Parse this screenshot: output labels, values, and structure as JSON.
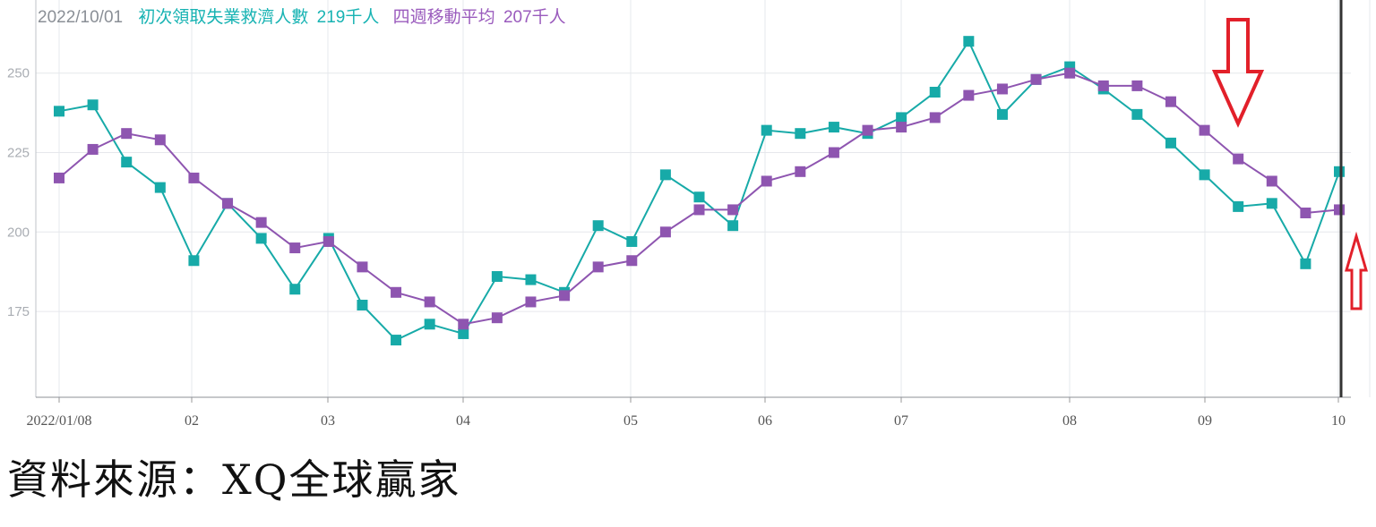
{
  "legend": {
    "date": "2022/10/01",
    "series1_label": "初次領取失業救濟人數",
    "series1_value": "219千人",
    "series2_label": "四週移動平均",
    "series2_value": "207千人"
  },
  "source_text": "資料來源：XQ全球贏家",
  "colors": {
    "series1": "#17aaa8",
    "series2": "#8e55b0",
    "arrow": "#e2202a",
    "cursor": "#333333"
  },
  "chart_data": {
    "type": "line",
    "title": "",
    "xlabel": "",
    "ylabel": "",
    "ylim": [
      148,
      273
    ],
    "yticks": [
      175,
      200,
      225,
      250
    ],
    "xticks": [
      "2022/01/08",
      "02",
      "03",
      "04",
      "05",
      "06",
      "07",
      "08",
      "09",
      "10"
    ],
    "x": [
      "2022/01/08",
      "2022/01/15",
      "2022/01/22",
      "2022/01/29",
      "2022/02/05",
      "2022/02/12",
      "2022/02/19",
      "2022/02/26",
      "2022/03/05",
      "2022/03/12",
      "2022/03/19",
      "2022/03/26",
      "2022/04/02",
      "2022/04/09",
      "2022/04/16",
      "2022/04/23",
      "2022/04/30",
      "2022/05/07",
      "2022/05/14",
      "2022/05/21",
      "2022/05/28",
      "2022/06/04",
      "2022/06/11",
      "2022/06/18",
      "2022/06/25",
      "2022/07/02",
      "2022/07/09",
      "2022/07/16",
      "2022/07/23",
      "2022/07/30",
      "2022/08/06",
      "2022/08/13",
      "2022/08/20",
      "2022/08/27",
      "2022/09/03",
      "2022/09/10",
      "2022/09/17",
      "2022/09/24",
      "2022/10/01"
    ],
    "grid": true,
    "legend_position": "top-left",
    "series": [
      {
        "name": "初次領取失業救濟人數",
        "values": [
          238,
          240,
          222,
          214,
          191,
          209,
          198,
          182,
          198,
          177,
          166,
          171,
          168,
          186,
          185,
          181,
          202,
          197,
          218,
          211,
          202,
          232,
          231,
          233,
          231,
          236,
          244,
          260,
          237,
          248,
          252,
          245,
          237,
          228,
          218,
          208,
          209,
          190,
          219
        ]
      },
      {
        "name": "四週移動平均",
        "values": [
          217,
          226,
          231,
          229,
          217,
          209,
          203,
          195,
          197,
          189,
          181,
          178,
          171,
          173,
          178,
          180,
          189,
          191,
          200,
          207,
          207,
          216,
          219,
          225,
          232,
          233,
          236,
          243,
          245,
          248,
          250,
          246,
          246,
          241,
          232,
          223,
          216,
          206,
          207
        ]
      }
    ],
    "annotations": [
      {
        "type": "arrow",
        "direction": "down",
        "near": "2022/09/17"
      },
      {
        "type": "arrow",
        "direction": "up",
        "near": "2022/10/01"
      }
    ]
  }
}
